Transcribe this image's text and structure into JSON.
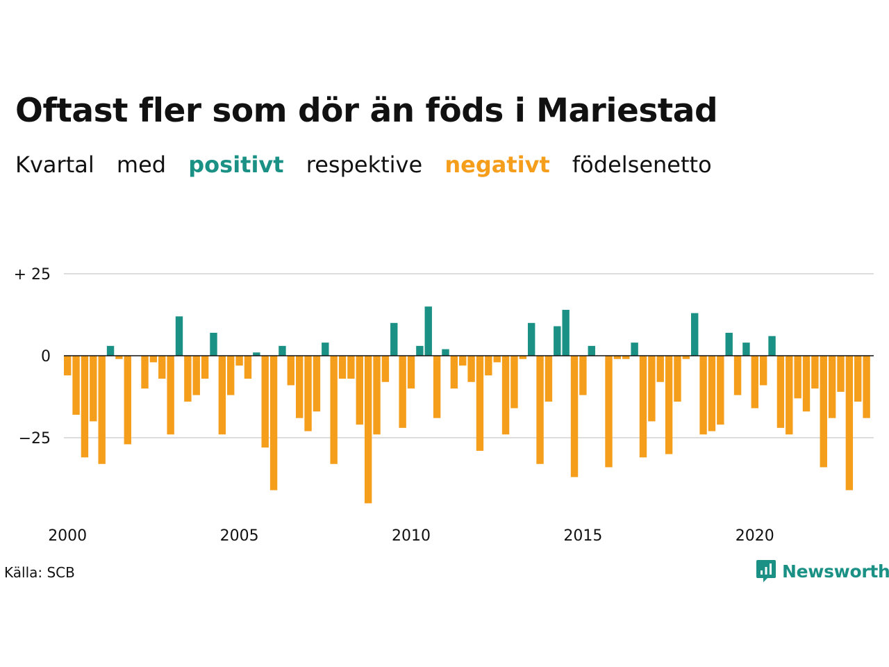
{
  "title": "Oftast fler som dör än föds i Mariestad",
  "subtitle": {
    "part1": "Kvartal",
    "part2": "med",
    "positive": "positivt",
    "part3": "respektive",
    "negative": "negativt",
    "part4": "födelsenetto"
  },
  "source": "Källa: SCB",
  "brand": "Newsworthy",
  "colors": {
    "positive": "#1a9184",
    "negative": "#f59e1c",
    "gridline": "#dddddd",
    "zeroline": "#111111"
  },
  "chart_data": {
    "type": "bar",
    "x_start": "2000 Q1",
    "x_ticks": [
      "2000",
      "2005",
      "2010",
      "2015",
      "2020"
    ],
    "y_ticks": [
      {
        "value": 25,
        "label": "+ 25"
      },
      {
        "value": 0,
        "label": "0"
      },
      {
        "value": -25,
        "label": "−25"
      }
    ],
    "ylim": [
      -47,
      27
    ],
    "grid": true,
    "values": [
      -6,
      -18,
      -31,
      -20,
      -33,
      3,
      -1,
      -27,
      0,
      -10,
      -2,
      -7,
      -24,
      12,
      -14,
      -12,
      -7,
      7,
      -24,
      -12,
      -3,
      -7,
      1,
      -28,
      -41,
      3,
      -9,
      -19,
      -23,
      -17,
      4,
      -33,
      -7,
      -7,
      -21,
      -45,
      -24,
      -8,
      10,
      -22,
      -10,
      3,
      15,
      -19,
      2,
      -10,
      -3,
      -8,
      -29,
      -6,
      -2,
      -24,
      -16,
      -1,
      10,
      -33,
      -14,
      9,
      14,
      -37,
      -12,
      3,
      0,
      -34,
      -1,
      -1,
      4,
      -31,
      -20,
      -8,
      -30,
      -14,
      -1,
      13,
      -24,
      -23,
      -21,
      7,
      -12,
      4,
      -16,
      -9,
      6,
      -22,
      -24,
      -13,
      -17,
      -10,
      -34,
      -19,
      -11,
      -41,
      -14,
      -19
    ]
  }
}
